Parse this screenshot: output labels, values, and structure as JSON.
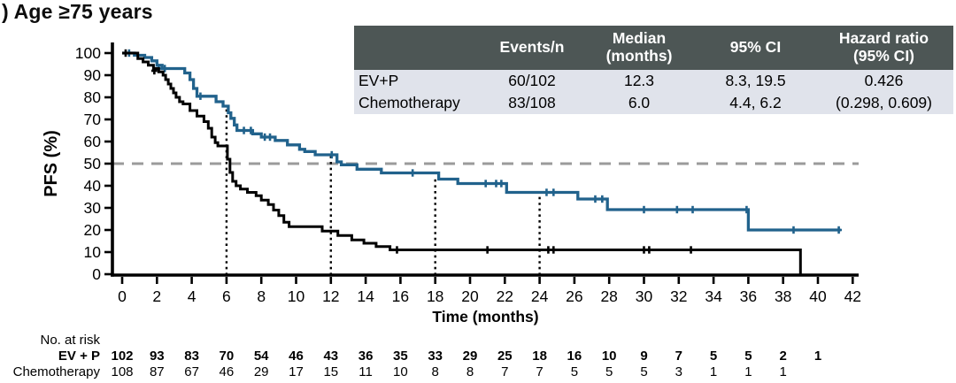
{
  "figure": {
    "title": ") Age ≥75 years"
  },
  "stats_table": {
    "headers": [
      "",
      "Events/n",
      "Median\n(months)",
      "95% CI",
      "Hazard ratio\n(95% CI)"
    ],
    "rows": [
      {
        "label": "EV+P",
        "events_n": "60/102",
        "median_months": "12.3",
        "ci_95": "8.3, 19.5",
        "hazard_ratio": "0.426"
      },
      {
        "label": "Chemotherapy",
        "events_n": "83/108",
        "median_months": "6.0",
        "ci_95": "4.4, 6.2",
        "hazard_ratio": "(0.298, 0.609)"
      }
    ]
  },
  "colors": {
    "evp_blue": "#21628c",
    "chemo_black": "#000000",
    "reference_dash_gray": "#9b9b9b",
    "table_header_bg": "#4d5655",
    "table_body_bg": "#e0e3eb"
  },
  "chart_data": {
    "type": "line",
    "subtype": "kaplan-meier-step",
    "title": ") Age ≥75 years",
    "xlabel": "Time (months)",
    "ylabel": "PFS (%)",
    "xlim": [
      0,
      42
    ],
    "x_tick_step": 2,
    "ylim": [
      0,
      100
    ],
    "y_tick_step": 10,
    "grid": false,
    "legend": "none (labels in stats table and risk table)",
    "reference_hline_pct": 50,
    "dotted_vlines": [
      {
        "x": 6,
        "top_pct": 75
      },
      {
        "x": 12,
        "top_pct": 53.5
      },
      {
        "x": 18,
        "top_pct": 44.5
      },
      {
        "x": 24,
        "top_pct": 37
      }
    ],
    "series": [
      {
        "name": "EV+P",
        "color": "#21628c",
        "steps": [
          [
            0,
            100
          ],
          [
            0.7,
            99
          ],
          [
            1.3,
            98
          ],
          [
            1.7,
            96.5
          ],
          [
            2.0,
            94.5
          ],
          [
            2.3,
            93
          ],
          [
            3.6,
            91
          ],
          [
            3.9,
            88
          ],
          [
            4.1,
            84
          ],
          [
            4.3,
            80.5
          ],
          [
            5.4,
            78
          ],
          [
            5.8,
            76
          ],
          [
            6.1,
            73
          ],
          [
            6.25,
            70.5
          ],
          [
            6.45,
            67.5
          ],
          [
            6.6,
            65
          ],
          [
            7.5,
            63.5
          ],
          [
            8.0,
            62
          ],
          [
            8.8,
            60.5
          ],
          [
            9.5,
            58.5
          ],
          [
            10.2,
            56.5
          ],
          [
            10.5,
            55.5
          ],
          [
            11.1,
            54
          ],
          [
            12.35,
            50.8
          ],
          [
            12.6,
            49.5
          ],
          [
            13.5,
            47.5
          ],
          [
            14.9,
            45.8
          ],
          [
            18.2,
            43
          ],
          [
            19.3,
            41
          ],
          [
            22.1,
            37
          ],
          [
            26.2,
            34
          ],
          [
            27.9,
            29.2
          ],
          [
            36.0,
            20
          ],
          [
            41.3,
            20
          ]
        ],
        "censors": [
          [
            0.4,
            100
          ],
          [
            2.1,
            93
          ],
          [
            2.45,
            93
          ],
          [
            4.5,
            80.5
          ],
          [
            7.0,
            65
          ],
          [
            7.4,
            65
          ],
          [
            8.2,
            62
          ],
          [
            8.5,
            62
          ],
          [
            12.05,
            54
          ],
          [
            16.7,
            45.8
          ],
          [
            20.9,
            41
          ],
          [
            21.5,
            41
          ],
          [
            21.8,
            41
          ],
          [
            24.4,
            37
          ],
          [
            24.8,
            37
          ],
          [
            27.2,
            34
          ],
          [
            27.6,
            34
          ],
          [
            30.0,
            29.2
          ],
          [
            31.9,
            29.2
          ],
          [
            32.8,
            29.2
          ],
          [
            35.9,
            29.2
          ],
          [
            38.6,
            20
          ],
          [
            41.2,
            20
          ]
        ]
      },
      {
        "name": "Chemotherapy",
        "color": "#000000",
        "steps": [
          [
            0,
            100
          ],
          [
            0.9,
            97.5
          ],
          [
            1.2,
            96
          ],
          [
            1.5,
            94.5
          ],
          [
            1.8,
            93
          ],
          [
            2.1,
            91.5
          ],
          [
            2.35,
            90
          ],
          [
            2.5,
            88
          ],
          [
            2.65,
            86
          ],
          [
            2.8,
            84
          ],
          [
            2.95,
            82
          ],
          [
            3.1,
            80
          ],
          [
            3.3,
            78
          ],
          [
            3.5,
            77
          ],
          [
            3.9,
            74
          ],
          [
            4.3,
            71.5
          ],
          [
            4.7,
            69
          ],
          [
            4.95,
            66
          ],
          [
            5.15,
            62
          ],
          [
            5.35,
            59.5
          ],
          [
            5.5,
            58
          ],
          [
            6.05,
            52
          ],
          [
            6.2,
            46
          ],
          [
            6.35,
            42
          ],
          [
            6.55,
            40
          ],
          [
            6.8,
            38.5
          ],
          [
            7.2,
            37
          ],
          [
            7.7,
            35.5
          ],
          [
            8.0,
            33.5
          ],
          [
            8.4,
            31.5
          ],
          [
            8.7,
            29
          ],
          [
            9.0,
            26.5
          ],
          [
            9.3,
            23.5
          ],
          [
            9.6,
            21.5
          ],
          [
            11.5,
            19.5
          ],
          [
            12.4,
            17.5
          ],
          [
            13.2,
            15.5
          ],
          [
            13.9,
            14
          ],
          [
            14.6,
            12.5
          ],
          [
            15.4,
            11
          ],
          [
            39.0,
            0
          ]
        ],
        "censors": [
          [
            0.2,
            100
          ],
          [
            1.85,
            92
          ],
          [
            15.8,
            11
          ],
          [
            21.0,
            11
          ],
          [
            24.5,
            11
          ],
          [
            24.8,
            11
          ],
          [
            30.0,
            11
          ],
          [
            30.3,
            11
          ],
          [
            32.7,
            11
          ]
        ]
      }
    ],
    "risk_table": {
      "heading": "No. at risk",
      "months": [
        0,
        2,
        4,
        6,
        8,
        10,
        12,
        14,
        16,
        18,
        20,
        22,
        24,
        26,
        28,
        30,
        32,
        34,
        36,
        38,
        40
      ],
      "rows": [
        {
          "label": "EV + P",
          "color": "#21628c",
          "bold": true,
          "values": [
            102,
            93,
            83,
            70,
            54,
            46,
            43,
            36,
            35,
            33,
            29,
            25,
            18,
            16,
            10,
            9,
            7,
            5,
            5,
            2,
            1
          ]
        },
        {
          "label": "Chemotherapy",
          "color": "#000000",
          "bold": false,
          "values": [
            108,
            87,
            67,
            46,
            29,
            17,
            15,
            11,
            10,
            8,
            8,
            7,
            7,
            5,
            5,
            5,
            3,
            1,
            1,
            1
          ]
        }
      ]
    }
  }
}
